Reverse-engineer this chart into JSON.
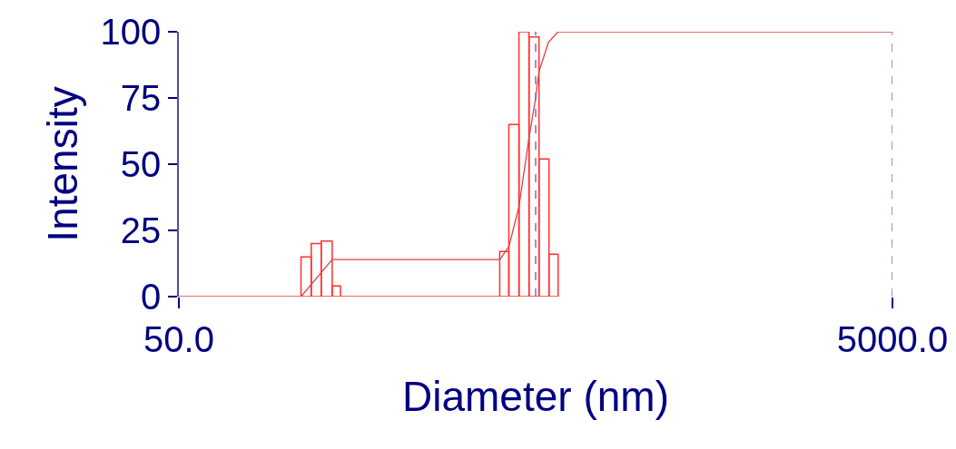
{
  "chart_data": {
    "type": "histogram",
    "xlabel": "Diameter (nm)",
    "ylabel": "Intensity",
    "bins": [
      110,
      117.5,
      125.3,
      134.5,
      141.9,
      396.5,
      420.6,
      449,
      479,
      511,
      545,
      578
    ],
    "values": [
      15,
      20,
      21,
      4,
      0,
      17,
      65,
      100,
      98,
      52,
      16
    ],
    "color": "#ff3030",
    "series": [
      {
        "type": "line",
        "color": "#e04040",
        "x": [
          50,
          110,
          134.5,
          397,
          421,
          449,
          479,
          500,
          511,
          543,
          578,
          5000
        ],
        "values": [
          0,
          0,
          14,
          14,
          19,
          34,
          60,
          75,
          85,
          96,
          100,
          100
        ]
      }
    ],
    "log": "x",
    "xlim": [
      50,
      5000
    ],
    "xticks": [
      {
        "value": 50,
        "label": "50.0"
      },
      {
        "value": 5000,
        "label": "5000.0"
      }
    ],
    "ylim": [
      0,
      100
    ],
    "yticks": [
      0,
      25,
      50,
      75,
      100
    ],
    "grid": false,
    "ref_lines": [
      {
        "axis": "x",
        "value": 500,
        "color": "#7070c0",
        "line_style": "dashed"
      },
      {
        "axis": "x",
        "value": 5000,
        "color": "#7070c0",
        "line_style": "dashed"
      }
    ]
  }
}
